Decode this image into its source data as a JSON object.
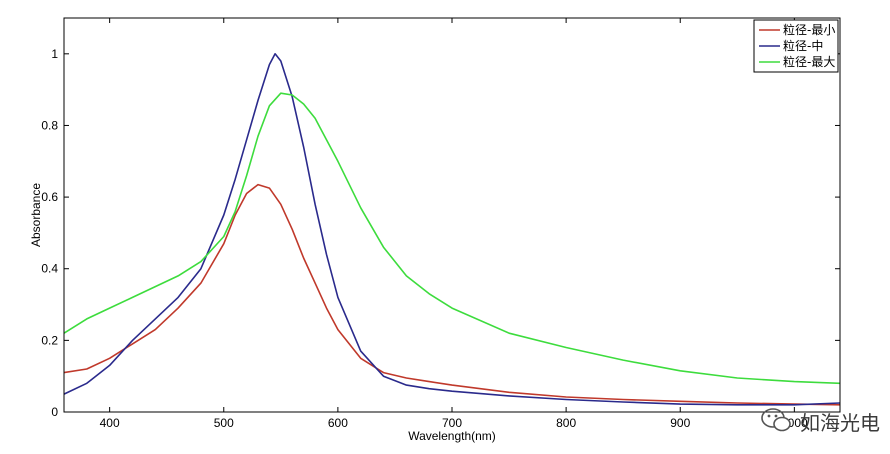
{
  "chart_data": {
    "type": "line",
    "title": "",
    "xlabel": "Wavelength(nm)",
    "ylabel": "Absorbance",
    "xlim": [
      360,
      1040
    ],
    "ylim": [
      0,
      1.1
    ],
    "xticks": [
      400,
      500,
      600,
      700,
      800,
      900,
      1000
    ],
    "yticks": [
      0,
      0.2,
      0.4,
      0.6,
      0.8,
      1
    ],
    "ytick_labels": [
      "0",
      "0.2",
      "0.4",
      "0.6",
      "0.8",
      "1"
    ],
    "grid": false,
    "legend_position": "top-right",
    "series": [
      {
        "name": "粒径-最小",
        "color": "#c0392b",
        "x": [
          360,
          380,
          400,
          420,
          440,
          460,
          480,
          500,
          510,
          520,
          530,
          540,
          550,
          560,
          570,
          580,
          590,
          600,
          620,
          640,
          660,
          680,
          700,
          750,
          800,
          850,
          900,
          950,
          1000,
          1040
        ],
        "y": [
          0.11,
          0.12,
          0.15,
          0.19,
          0.23,
          0.29,
          0.36,
          0.47,
          0.55,
          0.61,
          0.635,
          0.625,
          0.58,
          0.51,
          0.43,
          0.36,
          0.29,
          0.23,
          0.15,
          0.11,
          0.095,
          0.085,
          0.075,
          0.055,
          0.042,
          0.035,
          0.03,
          0.025,
          0.022,
          0.02
        ]
      },
      {
        "name": "粒径-中",
        "color": "#2a2a8c",
        "x": [
          360,
          380,
          400,
          420,
          440,
          460,
          480,
          500,
          510,
          520,
          530,
          540,
          545,
          550,
          560,
          570,
          580,
          590,
          600,
          620,
          640,
          660,
          680,
          700,
          750,
          800,
          850,
          900,
          950,
          1000,
          1040
        ],
        "y": [
          0.05,
          0.08,
          0.13,
          0.2,
          0.26,
          0.32,
          0.4,
          0.55,
          0.65,
          0.76,
          0.87,
          0.97,
          1.0,
          0.98,
          0.88,
          0.74,
          0.58,
          0.44,
          0.32,
          0.17,
          0.1,
          0.075,
          0.065,
          0.058,
          0.045,
          0.035,
          0.028,
          0.022,
          0.02,
          0.02,
          0.025
        ]
      },
      {
        "name": "粒径-最大",
        "color": "#3ddc3d",
        "x": [
          360,
          380,
          400,
          420,
          440,
          460,
          480,
          500,
          510,
          520,
          530,
          540,
          550,
          560,
          570,
          580,
          600,
          620,
          640,
          660,
          680,
          700,
          750,
          800,
          850,
          900,
          950,
          1000,
          1040
        ],
        "y": [
          0.22,
          0.26,
          0.29,
          0.32,
          0.35,
          0.38,
          0.42,
          0.49,
          0.56,
          0.66,
          0.77,
          0.855,
          0.89,
          0.885,
          0.86,
          0.82,
          0.7,
          0.57,
          0.46,
          0.38,
          0.33,
          0.29,
          0.22,
          0.18,
          0.145,
          0.115,
          0.095,
          0.085,
          0.08
        ]
      }
    ]
  },
  "watermark": {
    "text": "如海光电",
    "icon": "wechat-icon"
  }
}
